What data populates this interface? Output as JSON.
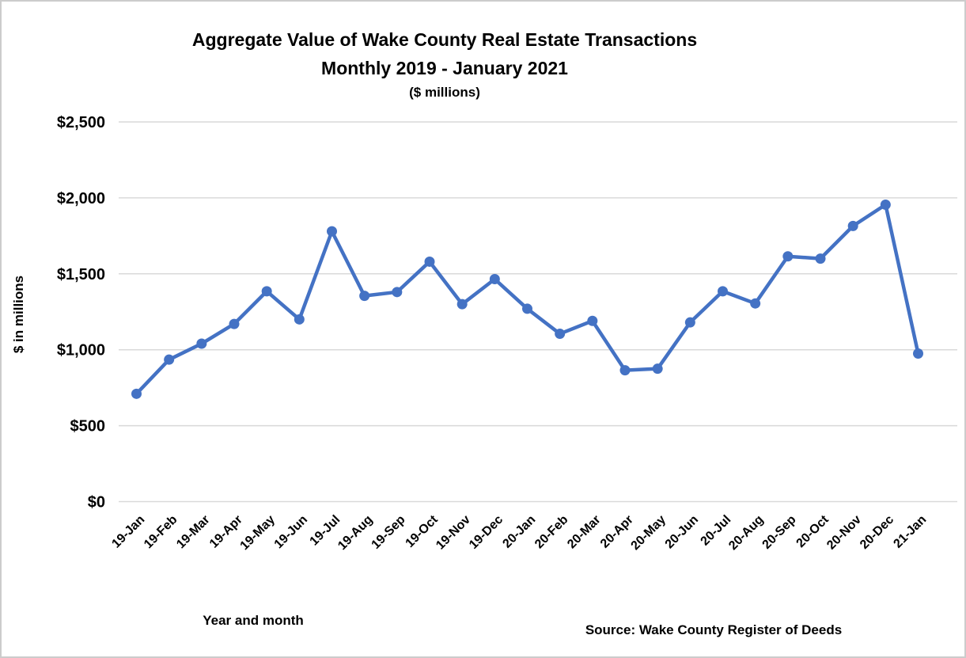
{
  "page": {
    "background_color": "#ffffff",
    "border_color": "#cccccc"
  },
  "chart_data": {
    "type": "line",
    "title": "Aggregate Value of Wake County Real Estate Transactions",
    "subtitle": "Monthly 2019 - January 2021",
    "units_note": "($ millions)",
    "xlabel": "Year and month",
    "ylabel": "$ in millions",
    "source": "Source: Wake County Register of Deeds",
    "categories": [
      "19-Jan",
      "19-Feb",
      "19-Mar",
      "19-Apr",
      "19-May",
      "19-Jun",
      "19-Jul",
      "19-Aug",
      "19-Sep",
      "19-Oct",
      "19-Nov",
      "19-Dec",
      "20-Jan",
      "20-Feb",
      "20-Mar",
      "20-Apr",
      "20-May",
      "20-Jun",
      "20-Jul",
      "20-Aug",
      "20-Sep",
      "20-Oct",
      "20-Nov",
      "20-Dec",
      "21-Jan"
    ],
    "values": [
      710,
      935,
      1040,
      1170,
      1385,
      1200,
      1780,
      1355,
      1380,
      1580,
      1300,
      1465,
      1270,
      1105,
      1190,
      865,
      875,
      1180,
      1385,
      1305,
      1615,
      1600,
      1815,
      1955,
      975
    ],
    "ylim": [
      0,
      2500
    ],
    "y_tick_interval": 500,
    "y_tick_labels": [
      "$0",
      "$500",
      "$1,000",
      "$1,500",
      "$2,000",
      "$2,500"
    ],
    "grid": true,
    "legend": "none",
    "line_color": "#4472C4",
    "marker_color": "#4472C4",
    "gridline_color": "#D9D9D9",
    "text_color": "#000000"
  }
}
